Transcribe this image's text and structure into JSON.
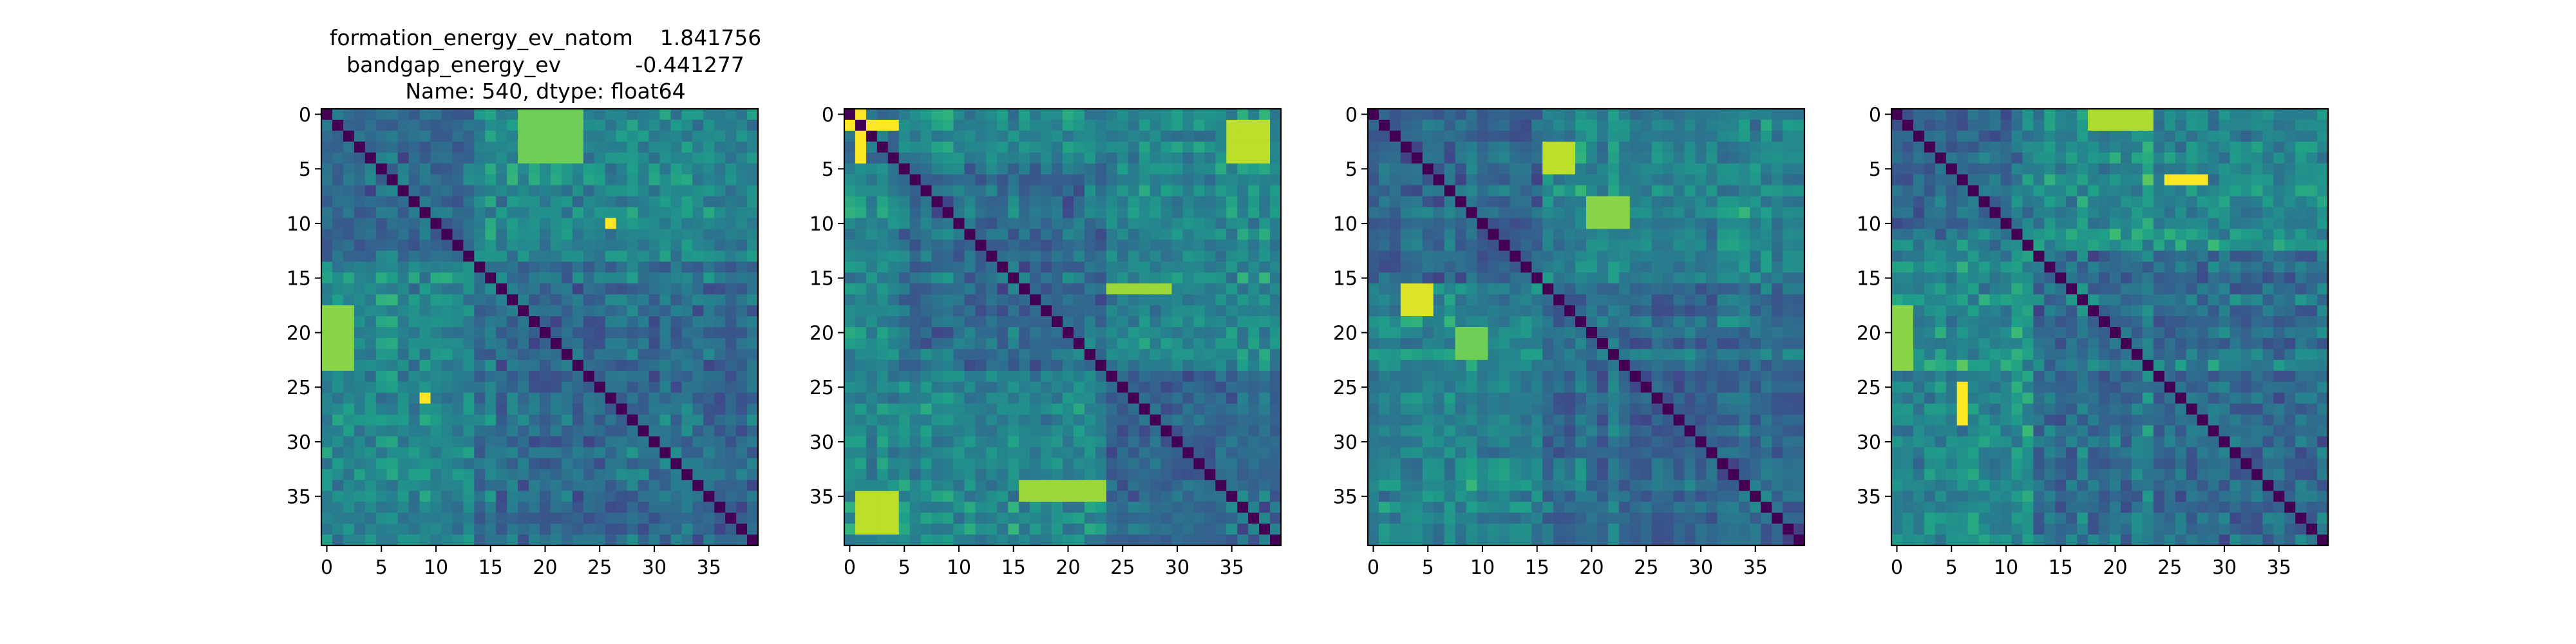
{
  "figure": {
    "title_lines": [
      "formation_energy_ev_natom    1.841756",
      "bandgap_energy_ev           -0.441277",
      "Name: 540, dtype: float64"
    ]
  },
  "chart_data": [
    {
      "type": "heatmap",
      "matrix_size": 40,
      "xticks": [
        0,
        5,
        10,
        15,
        20,
        25,
        30,
        35
      ],
      "yticks": [
        0,
        5,
        10,
        15,
        20,
        25,
        30,
        35
      ],
      "xlim": [
        0,
        39
      ],
      "ylim": [
        39,
        0
      ],
      "colormap": "viridis",
      "diagonal": "zero",
      "blocks": [
        [
          0,
          14
        ],
        [
          14,
          40
        ]
      ],
      "hotspots": [
        {
          "rows": [
            26,
            27
          ],
          "cols": [
            9,
            10
          ],
          "level": 1.0
        },
        {
          "rows": [
            10,
            11
          ],
          "cols": [
            26,
            27
          ],
          "level": 1.0
        },
        {
          "rows": [
            18,
            24
          ],
          "cols": [
            0,
            3
          ],
          "level": 0.82
        },
        {
          "rows": [
            0,
            5
          ],
          "cols": [
            18,
            24
          ],
          "level": 0.78
        }
      ]
    },
    {
      "type": "heatmap",
      "matrix_size": 40,
      "xticks": [
        0,
        5,
        10,
        15,
        20,
        25,
        30,
        35
      ],
      "yticks": [
        0,
        5,
        10,
        15,
        20,
        25,
        30,
        35
      ],
      "xlim": [
        0,
        39
      ],
      "ylim": [
        39,
        0
      ],
      "colormap": "viridis",
      "diagonal": "zero",
      "blocks": [
        [
          0,
          5
        ],
        [
          5,
          24
        ],
        [
          24,
          40
        ]
      ],
      "hotspots": [
        {
          "rows": [
            1,
            2
          ],
          "cols": [
            0,
            5
          ],
          "level": 1.0
        },
        {
          "rows": [
            0,
            5
          ],
          "cols": [
            1,
            2
          ],
          "level": 1.0
        },
        {
          "rows": [
            1,
            5
          ],
          "cols": [
            35,
            39
          ],
          "level": 0.9
        },
        {
          "rows": [
            35,
            39
          ],
          "cols": [
            1,
            5
          ],
          "level": 0.9
        },
        {
          "rows": [
            16,
            17
          ],
          "cols": [
            24,
            30
          ],
          "level": 0.85
        },
        {
          "rows": [
            34,
            36
          ],
          "cols": [
            16,
            24
          ],
          "level": 0.85
        }
      ]
    },
    {
      "type": "heatmap",
      "matrix_size": 40,
      "xticks": [
        0,
        5,
        10,
        15,
        20,
        25,
        30,
        35
      ],
      "yticks": [
        0,
        5,
        10,
        15,
        20,
        25,
        30,
        35
      ],
      "xlim": [
        0,
        39
      ],
      "ylim": [
        39,
        0
      ],
      "colormap": "viridis",
      "diagonal": "zero",
      "blocks": [
        [
          0,
          16
        ],
        [
          16,
          40
        ]
      ],
      "hotspots": [
        {
          "rows": [
            16,
            19
          ],
          "cols": [
            3,
            6
          ],
          "level": 0.95
        },
        {
          "rows": [
            3,
            6
          ],
          "cols": [
            16,
            19
          ],
          "level": 0.9
        },
        {
          "rows": [
            8,
            11
          ],
          "cols": [
            20,
            24
          ],
          "level": 0.82
        },
        {
          "rows": [
            20,
            23
          ],
          "cols": [
            8,
            11
          ],
          "level": 0.78
        }
      ]
    },
    {
      "type": "heatmap",
      "matrix_size": 40,
      "xticks": [
        0,
        5,
        10,
        15,
        20,
        25,
        30,
        35
      ],
      "yticks": [
        0,
        5,
        10,
        15,
        20,
        25,
        30,
        35
      ],
      "xlim": [
        0,
        39
      ],
      "ylim": [
        39,
        0
      ],
      "colormap": "viridis",
      "diagonal": "zero",
      "blocks": [
        [
          0,
          13
        ],
        [
          13,
          40
        ]
      ],
      "hotspots": [
        {
          "rows": [
            25,
            29
          ],
          "cols": [
            6,
            7
          ],
          "level": 1.0
        },
        {
          "rows": [
            6,
            7
          ],
          "cols": [
            25,
            29
          ],
          "level": 1.0
        },
        {
          "rows": [
            0,
            2
          ],
          "cols": [
            18,
            24
          ],
          "level": 0.88
        },
        {
          "rows": [
            18,
            24
          ],
          "cols": [
            0,
            2
          ],
          "level": 0.82
        }
      ]
    }
  ]
}
